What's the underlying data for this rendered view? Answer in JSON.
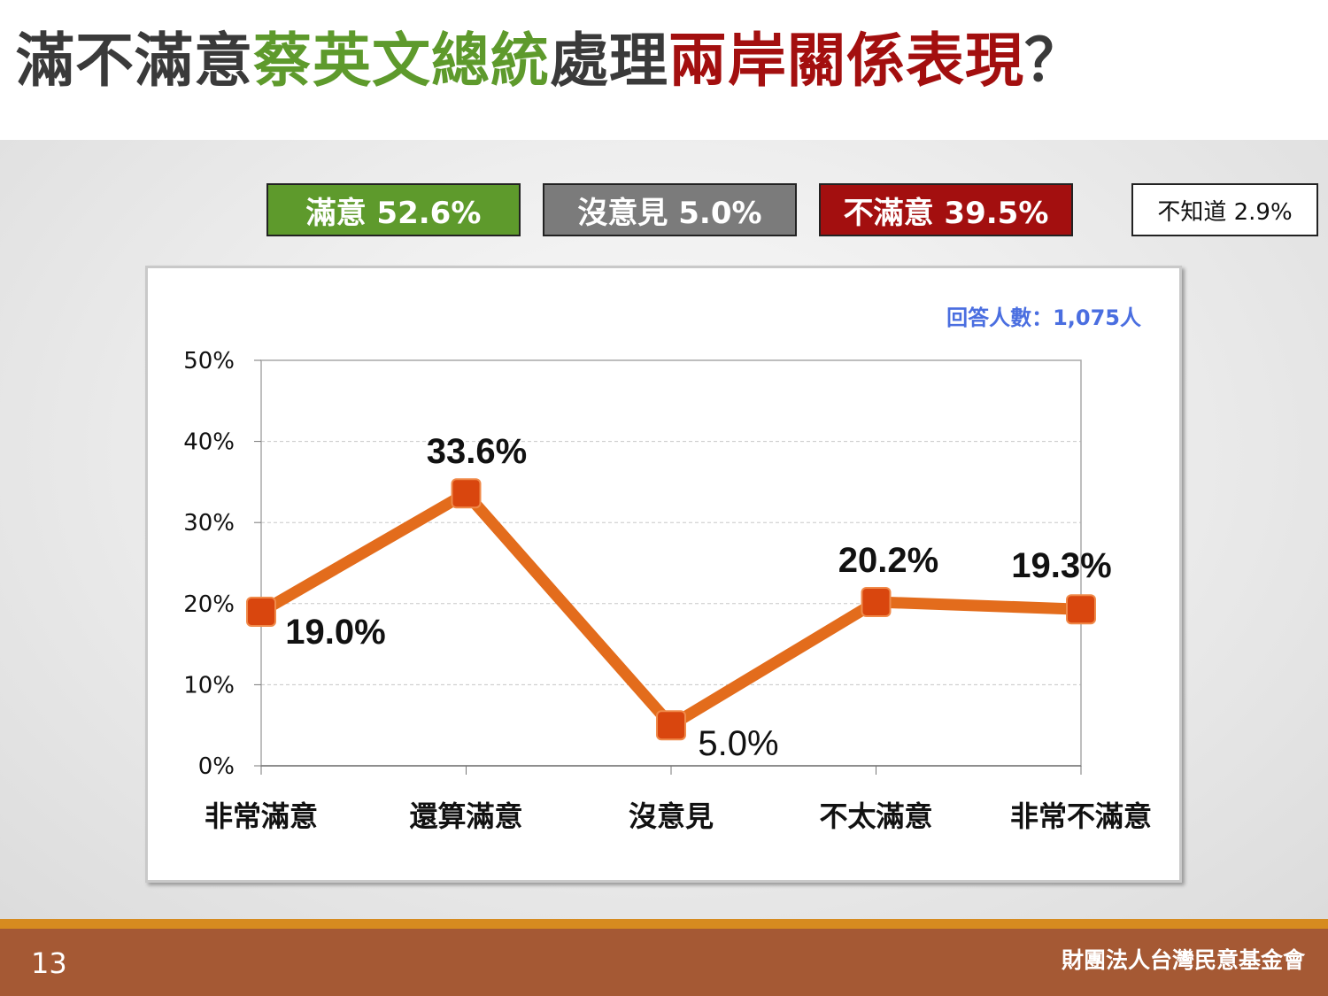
{
  "title": {
    "parts": [
      {
        "text": "滿不滿意",
        "color": "#3a3a3a"
      },
      {
        "text": "蔡英文總統",
        "color": "#5e9a2c"
      },
      {
        "text": "處理",
        "color": "#3a3a3a"
      },
      {
        "text": "兩岸關係表現",
        "color": "#a30f0f"
      },
      {
        "text": "？",
        "color": "#3a3a3a"
      }
    ]
  },
  "legend": {
    "satisfied": "滿意 52.6%",
    "no_opinion": "沒意見 5.0%",
    "dissatisfied": "不滿意 39.5%",
    "unknown": "不知道 2.9%"
  },
  "respondents_note": "回答人數：1,075人",
  "chart_data": {
    "type": "line",
    "categories": [
      "非常滿意",
      "還算滿意",
      "沒意見",
      "不太滿意",
      "非常不滿意"
    ],
    "values": [
      19.0,
      33.6,
      5.0,
      20.2,
      19.3
    ],
    "data_labels": [
      "19.0%",
      "33.6%",
      "5.0%",
      "20.2%",
      "19.3%"
    ],
    "y_ticks": [
      "0%",
      "10%",
      "20%",
      "30%",
      "40%",
      "50%"
    ],
    "ylim": [
      0,
      50
    ],
    "grid": true,
    "line_color": "#e36c1c",
    "marker_color": "#d9460e",
    "title": "",
    "xlabel": "",
    "ylabel": ""
  },
  "footer": {
    "page_number": "13",
    "organization": "財團法人台灣民意基金會"
  }
}
